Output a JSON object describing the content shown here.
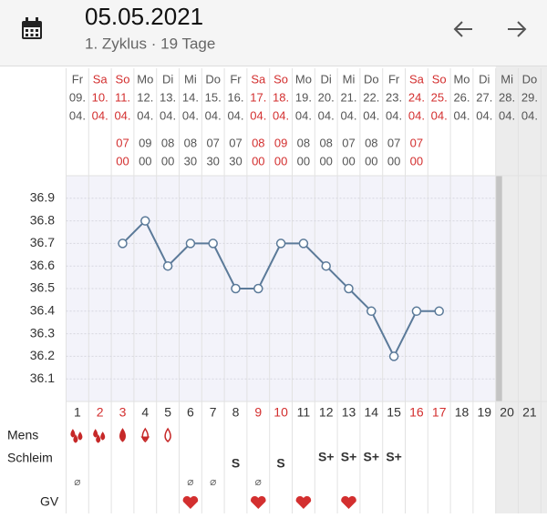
{
  "header": {
    "title": "05.05.2021",
    "subtitle": "1. Zyklus · 19 Tage"
  },
  "rows": {
    "mens": "Mens",
    "schleim": "Schleim",
    "gv": "GV"
  },
  "chart_data": {
    "type": "line",
    "color": "#5b7a99",
    "ylim": [
      36.0,
      37.0
    ],
    "yticks": [
      36.1,
      36.2,
      36.3,
      36.4,
      36.5,
      36.6,
      36.7,
      36.8,
      36.9
    ],
    "grid": true,
    "days": [
      {
        "weekday": "Fr",
        "day": "09.",
        "month": "04.",
        "weekend": false,
        "hour": null,
        "minute": null,
        "cycle_day": 1,
        "temp": null,
        "schleim": "⌀"
      },
      {
        "weekday": "Sa",
        "day": "10.",
        "month": "04.",
        "weekend": true,
        "hour": null,
        "minute": null,
        "cycle_day": 2,
        "temp": null,
        "schleim": null
      },
      {
        "weekday": "So",
        "day": "11.",
        "month": "04.",
        "weekend": true,
        "hour": "07",
        "minute": "00",
        "cycle_day": 3,
        "temp": 36.7,
        "schleim": null
      },
      {
        "weekday": "Mo",
        "day": "12.",
        "month": "04.",
        "weekend": false,
        "hour": "09",
        "minute": "00",
        "cycle_day": 4,
        "temp": 36.8,
        "schleim": null
      },
      {
        "weekday": "Di",
        "day": "13.",
        "month": "04.",
        "weekend": false,
        "hour": "08",
        "minute": "00",
        "cycle_day": 5,
        "temp": 36.6,
        "schleim": null
      },
      {
        "weekday": "Mi",
        "day": "14.",
        "month": "04.",
        "weekend": false,
        "hour": "08",
        "minute": "30",
        "cycle_day": 6,
        "temp": 36.7,
        "schleim": "⌀"
      },
      {
        "weekday": "Do",
        "day": "15.",
        "month": "04.",
        "weekend": false,
        "hour": "07",
        "minute": "30",
        "cycle_day": 7,
        "temp": 36.7,
        "schleim": "⌀"
      },
      {
        "weekday": "Fr",
        "day": "16.",
        "month": "04.",
        "weekend": false,
        "hour": "07",
        "minute": "30",
        "cycle_day": 8,
        "temp": 36.5,
        "schleim": "S"
      },
      {
        "weekday": "Sa",
        "day": "17.",
        "month": "04.",
        "weekend": true,
        "hour": "08",
        "minute": "00",
        "cycle_day": 9,
        "temp": 36.5,
        "schleim": "⌀"
      },
      {
        "weekday": "So",
        "day": "18.",
        "month": "04.",
        "weekend": true,
        "hour": "09",
        "minute": "00",
        "cycle_day": 10,
        "temp": 36.7,
        "schleim": "S"
      },
      {
        "weekday": "Mo",
        "day": "19.",
        "month": "04.",
        "weekend": false,
        "hour": "08",
        "minute": "00",
        "cycle_day": 11,
        "temp": 36.7,
        "schleim": null
      },
      {
        "weekday": "Di",
        "day": "20.",
        "month": "04.",
        "weekend": false,
        "hour": "08",
        "minute": "00",
        "cycle_day": 12,
        "temp": 36.6,
        "schleim": "S+"
      },
      {
        "weekday": "Mi",
        "day": "21.",
        "month": "04.",
        "weekend": false,
        "hour": "07",
        "minute": "00",
        "cycle_day": 13,
        "temp": 36.5,
        "schleim": "S+"
      },
      {
        "weekday": "Do",
        "day": "22.",
        "month": "04.",
        "weekend": false,
        "hour": "08",
        "minute": "00",
        "cycle_day": 14,
        "temp": 36.4,
        "schleim": "S+"
      },
      {
        "weekday": "Fr",
        "day": "23.",
        "month": "04.",
        "weekend": false,
        "hour": "07",
        "minute": "00",
        "cycle_day": 15,
        "temp": 36.2,
        "schleim": "S+"
      },
      {
        "weekday": "Sa",
        "day": "24.",
        "month": "04.",
        "weekend": true,
        "hour": "07",
        "minute": "00",
        "cycle_day": 16,
        "temp": 36.4,
        "schleim": null
      },
      {
        "weekday": "So",
        "day": "25.",
        "month": "04.",
        "weekend": true,
        "hour": null,
        "minute": null,
        "cycle_day": 17,
        "temp": 36.4,
        "schleim": null
      },
      {
        "weekday": "Mo",
        "day": "26.",
        "month": "04.",
        "weekend": false,
        "hour": null,
        "minute": null,
        "cycle_day": 18,
        "temp": null,
        "schleim": null
      },
      {
        "weekday": "Di",
        "day": "27.",
        "month": "04.",
        "weekend": false,
        "hour": null,
        "minute": null,
        "cycle_day": 19,
        "temp": null,
        "schleim": null
      },
      {
        "weekday": "Mi",
        "day": "28.",
        "month": "04.",
        "weekend": false,
        "hour": null,
        "minute": null,
        "cycle_day": 20,
        "temp": null,
        "schleim": null
      },
      {
        "weekday": "Do",
        "day": "29.",
        "month": "04.",
        "weekend": false,
        "hour": null,
        "minute": null,
        "cycle_day": 21,
        "temp": null,
        "schleim": null
      }
    ]
  }
}
